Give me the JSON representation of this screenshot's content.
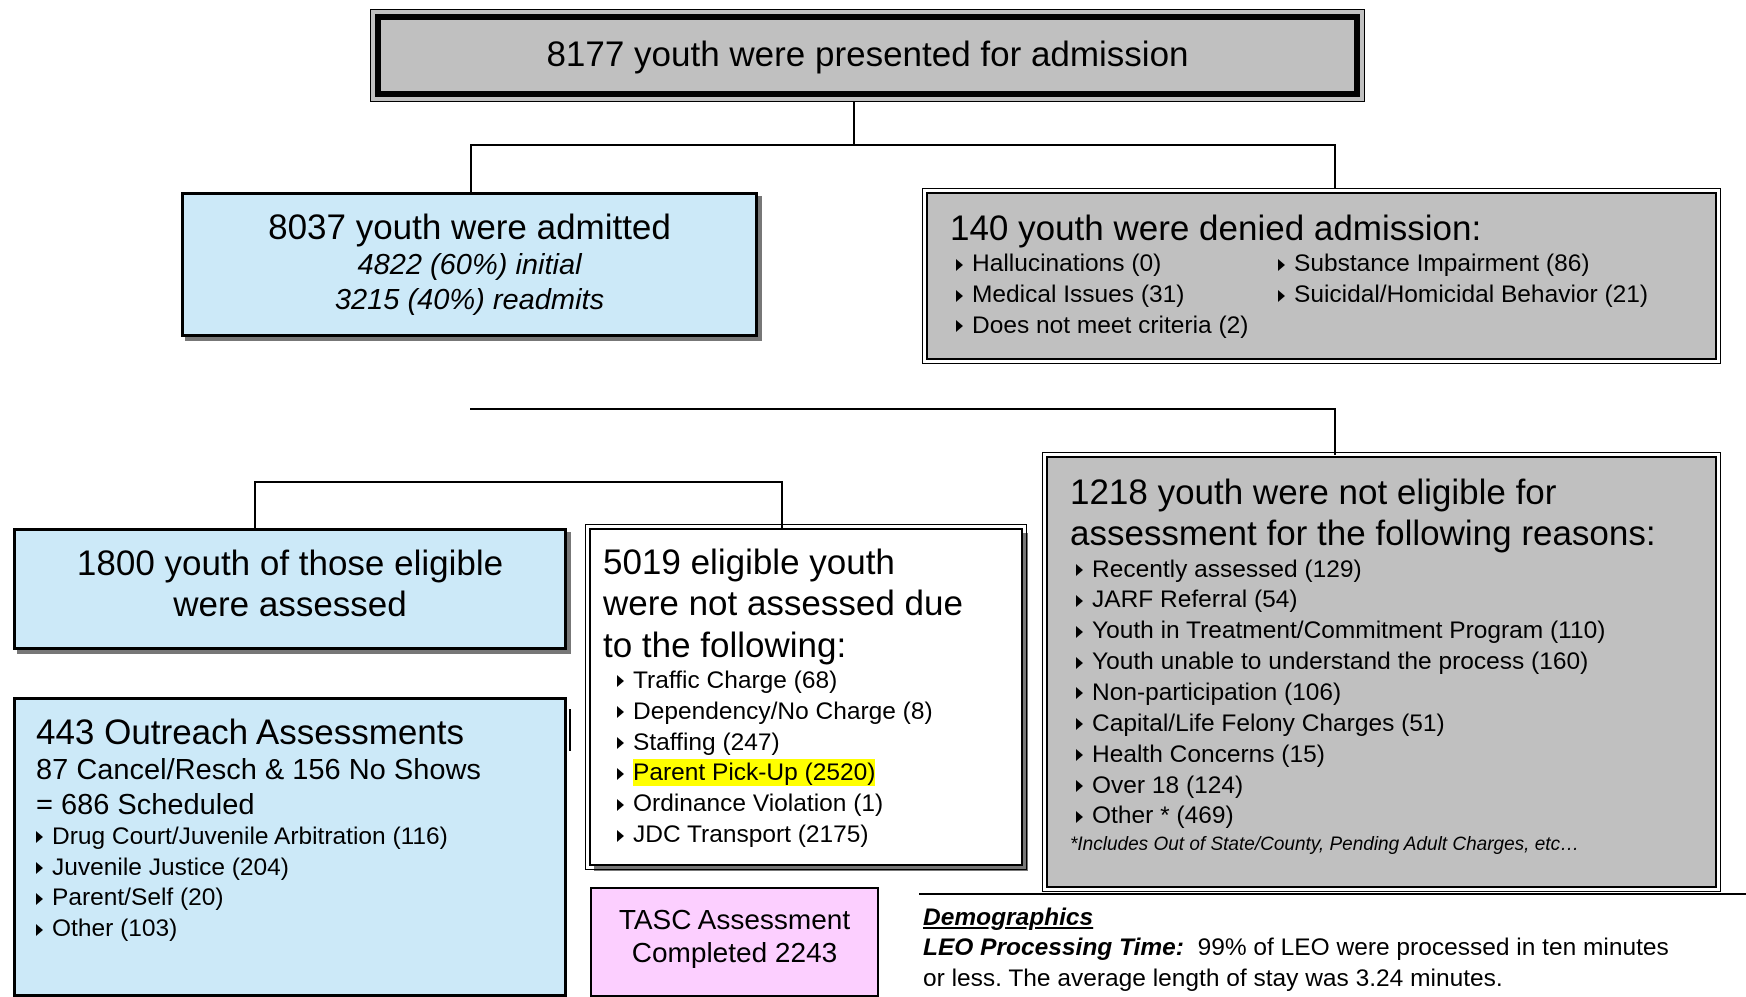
{
  "top": {
    "title": "8177 youth were presented for admission"
  },
  "admitted": {
    "title": "8037 youth were admitted",
    "lines": [
      "4822 (60%) initial",
      "3215 (40%) readmits"
    ]
  },
  "denied": {
    "title": "140 youth were denied admission:",
    "items": [
      "Hallucinations (0)",
      "Substance Impairment (86)",
      "Medical Issues (31)",
      "Suicidal/Homicidal Behavior (21)",
      "Does not meet criteria (2)"
    ]
  },
  "assessed": {
    "lines": [
      "1800 youth of those eligible",
      "were assessed"
    ]
  },
  "not_assessed": {
    "lines": [
      "5019 eligible youth",
      "were not assessed due",
      "to the following:"
    ],
    "items": [
      "Traffic Charge (68)",
      "Dependency/No Charge (8)",
      "Staffing (247)",
      "Parent Pick-Up (2520)",
      "Ordinance Violation (1)",
      "JDC Transport (2175)"
    ],
    "highlight": 3
  },
  "not_eligible": {
    "lines": [
      "1218 youth were not eligible for",
      "assessment for the following reasons:"
    ],
    "items": [
      "Recently assessed (129)",
      "JARF Referral (54)",
      "Youth in Treatment/Commitment Program (110)",
      "Youth unable to understand the process (160)",
      "Non-participation (106)",
      "Capital/Life Felony Charges (51)",
      "Health Concerns (15)",
      "Over 18 (124)",
      "Other * (469)"
    ],
    "footnote": "*Includes Out of State/County, Pending Adult Charges, etc…"
  },
  "outreach": {
    "title": "443 Outreach Assessments",
    "lines": [
      "87 Cancel/Resch & 156 No Shows",
      "=  686 Scheduled"
    ],
    "items": [
      "Drug Court/Juvenile Arbitration (116)",
      "Juvenile Justice (204)",
      "Parent/Self (20)",
      "Other (103)"
    ]
  },
  "tasc": {
    "lines": [
      "TASC Assessment",
      "Completed 2243"
    ]
  },
  "demographics": {
    "heading": "Demographics",
    "label": "LEO Processing Time:",
    "lines": [
      "99% of LEO were processed in ten minutes",
      "or less.  The average length of stay was 3.24 minutes."
    ]
  }
}
